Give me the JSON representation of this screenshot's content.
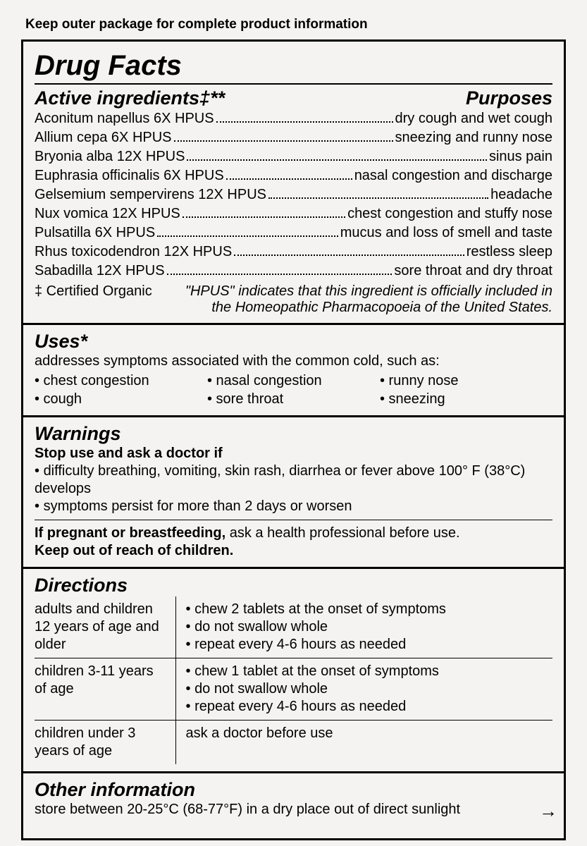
{
  "top_note": "Keep outer package for complete product information",
  "main_title": "Drug Facts",
  "ingredients": {
    "heading_left": "Active ingredients‡**",
    "heading_right": "Purposes",
    "rows": [
      {
        "name": "Aconitum napellus 6X HPUS",
        "purpose": "dry cough and wet cough"
      },
      {
        "name": "Allium cepa 6X HPUS",
        "purpose": "sneezing and runny nose"
      },
      {
        "name": "Bryonia alba 12X HPUS",
        "purpose": "sinus pain"
      },
      {
        "name": "Euphrasia officinalis 6X HPUS",
        "purpose": "nasal congestion and discharge"
      },
      {
        "name": "Gelsemium sempervirens 12X HPUS",
        "purpose": "headache"
      },
      {
        "name": "Nux vomica 12X HPUS",
        "purpose": "chest congestion and stuffy nose"
      },
      {
        "name": "Pulsatilla 6X HPUS",
        "purpose": "mucus and loss of smell and taste"
      },
      {
        "name": "Rhus toxicodendron 12X HPUS",
        "purpose": "restless sleep"
      },
      {
        "name": "Sabadilla 12X HPUS",
        "purpose": "sore throat and dry throat"
      }
    ],
    "cert": "‡ Certified Organic",
    "hpus_note": "\"HPUS\" indicates that this ingredient is officially included in the Homeopathic Pharmacopoeia of the United States."
  },
  "uses": {
    "title": "Uses*",
    "intro": "addresses symptoms associated with the common cold, such as:",
    "col1": [
      "chest congestion",
      "cough"
    ],
    "col2": [
      "nasal congestion",
      "sore throat"
    ],
    "col3": [
      "runny nose",
      "sneezing"
    ]
  },
  "warnings": {
    "title": "Warnings",
    "stop_use": "Stop use and ask a doctor if",
    "bullets": [
      "difficulty breathing, vomiting, skin rash, diarrhea or fever above 100° F (38°C) develops",
      "symptoms persist for more than 2 days or worsen"
    ],
    "pregnant_bold": "If pregnant or breastfeeding,",
    "pregnant_rest": " ask a health professional before use.",
    "keep_out": "Keep out of reach of children."
  },
  "directions": {
    "title": "Directions",
    "rows": [
      {
        "who": "adults and children 12 years of age and older",
        "steps": [
          "chew 2 tablets at the onset of symptoms",
          "do not swallow whole",
          "repeat every 4-6 hours as needed"
        ]
      },
      {
        "who": "children 3-11 years of age",
        "steps": [
          "chew 1 tablet at the onset of symptoms",
          "do not swallow whole",
          "repeat every 4-6 hours as needed"
        ]
      },
      {
        "who": "children under 3 years of age",
        "steps_plain": "ask a doctor before use"
      }
    ]
  },
  "other": {
    "title": "Other information",
    "text": "store between 20-25°C (68-77°F) in a dry place out of direct sunlight"
  },
  "arrow": "→",
  "style": {
    "border_color": "#000000",
    "background_color": "#f4f3f1",
    "text_color": "#000000",
    "title_fontsize": 40,
    "section_title_fontsize": 27,
    "body_fontsize": 20
  }
}
